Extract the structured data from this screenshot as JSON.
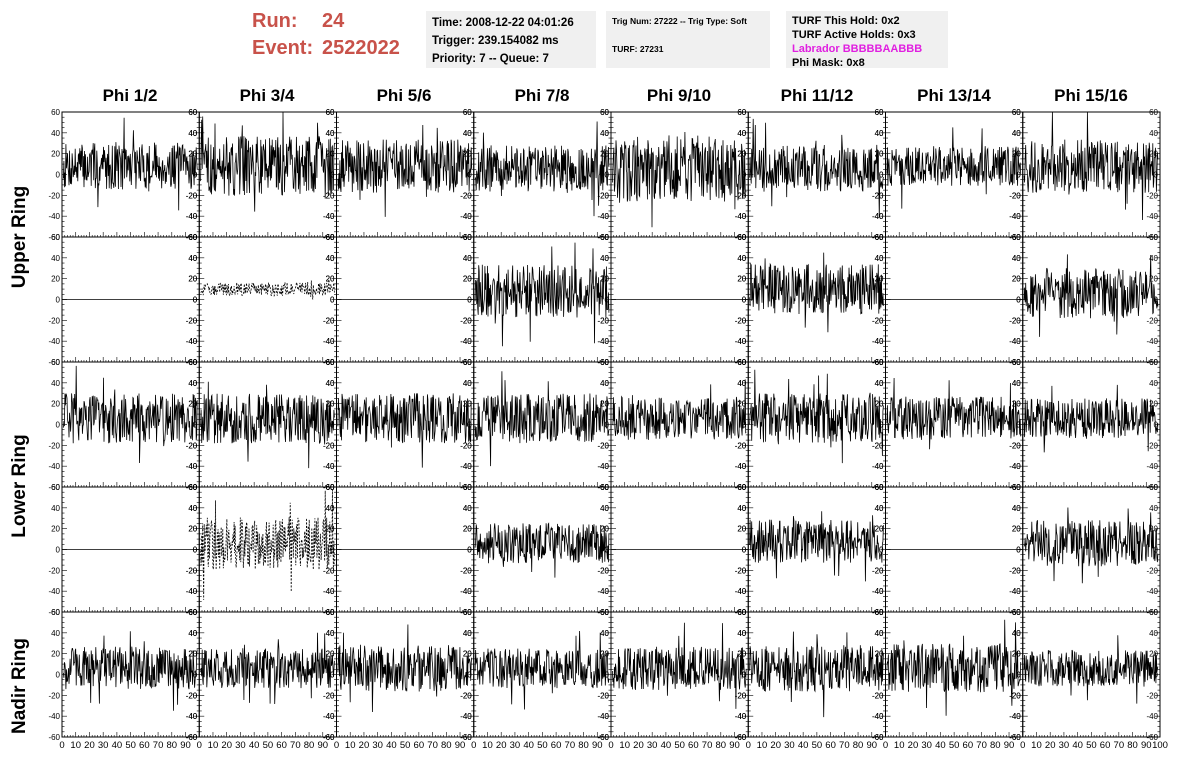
{
  "header": {
    "run_label": "Run:",
    "run_value": "24",
    "event_label": "Event:",
    "event_value": "2522022"
  },
  "info_box_1": [
    "Time: 2008-12-22 04:01:26",
    "Trigger: 239.154082 ms",
    "Priority: 7 -- Queue: 7"
  ],
  "info_box_2": {
    "trig_line": "Trig Num: 27222 -- Trig Type: Soft",
    "turf_line": "TURF: 27231"
  },
  "info_box_3": {
    "this_hold": "TURF This Hold: 0x2",
    "active_holds": "TURF Active Holds: 0x3",
    "labrador": "Labrador BBBBBAABBB",
    "phi_mask": "Phi Mask: 0x8"
  },
  "colors": {
    "run_text": "#c8524a",
    "labrador_text": "#e020e0",
    "info_bg": "#f0f0f0",
    "trace": "#000000"
  },
  "columns": [
    "Phi 1/2",
    "Phi 3/4",
    "Phi 5/6",
    "Phi 7/8",
    "Phi 9/10",
    "Phi 11/12",
    "Phi 13/14",
    "Phi 15/16"
  ],
  "row_labels": [
    "Upper Ring",
    "Lower Ring",
    "Nadir Ring"
  ],
  "chart_data": {
    "type": "line",
    "rows": 5,
    "cols": 8,
    "xlim": [
      0,
      100
    ],
    "ylim": [
      -60,
      60
    ],
    "x_tick_labels": [
      "0",
      "10",
      "20",
      "30",
      "40",
      "50",
      "60",
      "70",
      "80",
      "90",
      "100"
    ],
    "y_tick_labels": [
      "-60",
      "-40",
      "-20",
      "0",
      "20",
      "40",
      "60"
    ],
    "grid": false,
    "series_amplitude": [
      [
        14,
        18,
        16,
        14,
        20,
        14,
        12,
        16
      ],
      [
        0,
        4,
        0,
        16,
        0,
        15,
        0,
        15
      ],
      [
        15,
        15,
        15,
        15,
        13,
        15,
        13,
        12
      ],
      [
        0,
        16,
        0,
        12,
        0,
        13,
        0,
        14
      ],
      [
        13,
        12,
        14,
        12,
        13,
        14,
        15,
        11
      ]
    ],
    "series_offset": [
      [
        8,
        8,
        8,
        6,
        6,
        6,
        8,
        8
      ],
      [
        0,
        10,
        0,
        8,
        0,
        10,
        0,
        6
      ],
      [
        6,
        6,
        6,
        6,
        6,
        6,
        6,
        6
      ],
      [
        0,
        6,
        0,
        6,
        0,
        8,
        0,
        6
      ],
      [
        6,
        6,
        6,
        6,
        6,
        6,
        6,
        6
      ]
    ],
    "dashed_panels": [
      [
        1,
        1
      ],
      [
        3,
        1
      ]
    ]
  }
}
